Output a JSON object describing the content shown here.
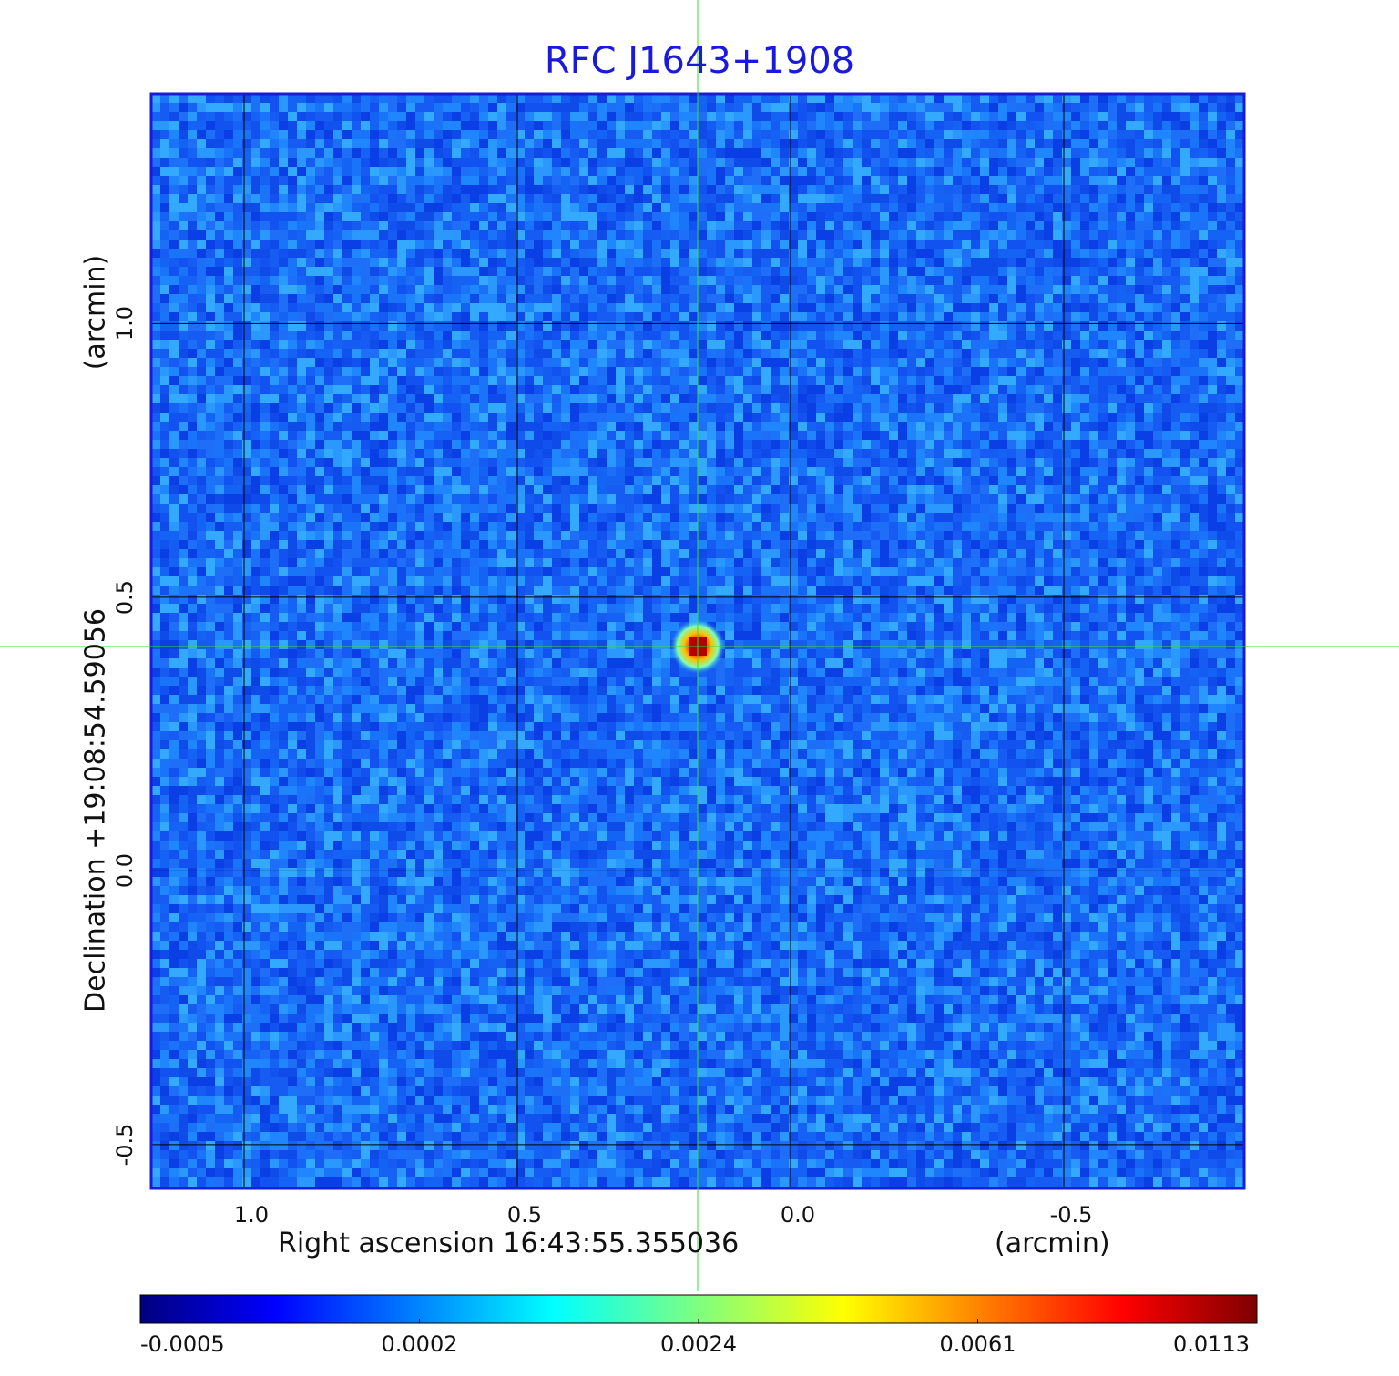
{
  "chart_data": {
    "type": "heatmap",
    "title": "RFC J1643+1908",
    "xlabel": "Right ascension  16:43:55.355036",
    "x_unit": "(arcmin)",
    "ylabel": "Declination  +19:08:54.59056",
    "y_unit": "(arcmin)",
    "x_ticks": [
      "1.0",
      "0.5",
      "0.0",
      "-0.5"
    ],
    "x_tick_values": [
      1.0,
      0.5,
      0.0,
      -0.5
    ],
    "y_ticks": [
      "1.0",
      "0.5",
      "0.0",
      "-0.5"
    ],
    "y_tick_values": [
      1.0,
      0.5,
      0.0,
      -0.5
    ],
    "xlim": [
      1.17,
      -0.83
    ],
    "ylim": [
      -0.58,
      1.42
    ],
    "grid": true,
    "crosshair": {
      "x": 0.17,
      "y": 0.41
    },
    "source_peak": {
      "x": 0.17,
      "y": 0.41,
      "value": 0.0113
    },
    "colorbar": {
      "tick_labels": [
        "-0.0005",
        "0.0002",
        "0.0024",
        "0.0061",
        "0.0113"
      ],
      "min": -0.0005,
      "max": 0.0113,
      "colormap": "jet"
    },
    "colors": {
      "title": "#1a1adc",
      "frame": "#1a1adc",
      "crosshair": "#33dd33",
      "grid": "#000000"
    }
  }
}
